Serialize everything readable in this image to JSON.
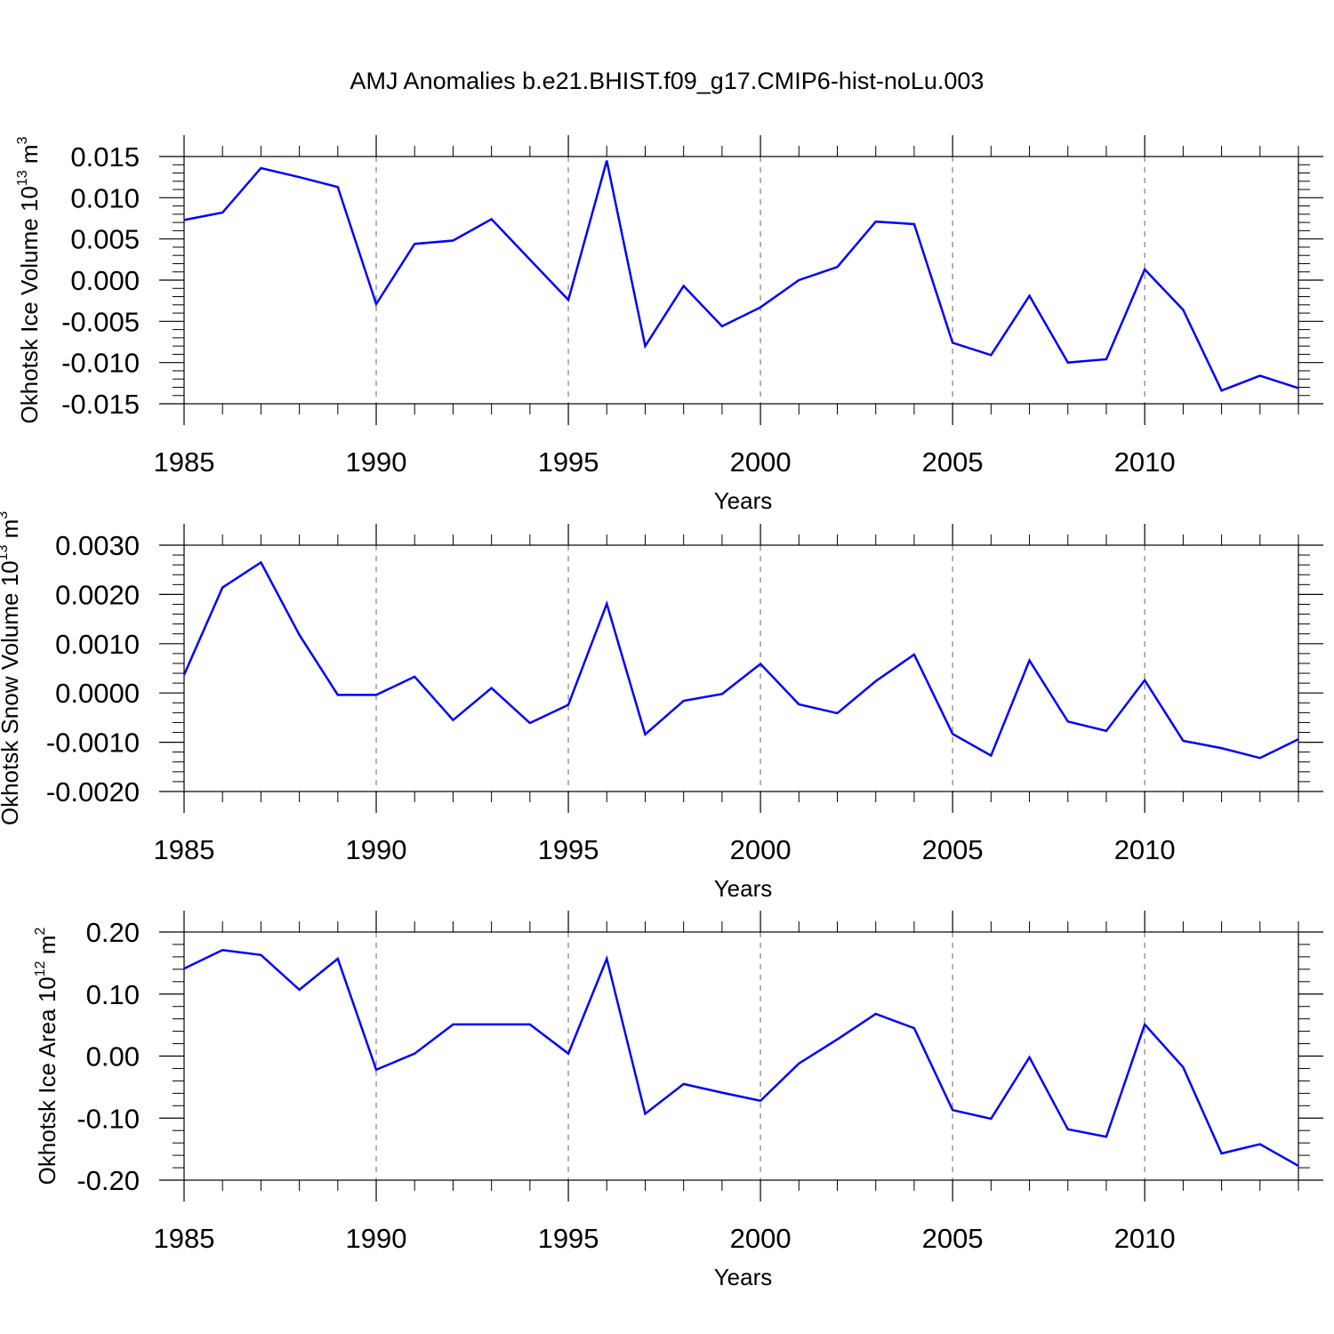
{
  "title": "AMJ Anomalies b.e21.BHIST.f09_g17.CMIP6-hist-noLu.003",
  "colors": {
    "series": "#0000ff",
    "grid": "#999999"
  },
  "chart_data": [
    {
      "type": "line",
      "ylabel": {
        "text": "Okhotsk Ice Volume 10",
        "exp": "13",
        "unit_sep": " m",
        "unit_exp": "3"
      },
      "xlabel": "Years",
      "xlim": [
        1985,
        2014
      ],
      "ylim": [
        -0.015,
        0.015
      ],
      "yticks": [
        -0.015,
        -0.01,
        -0.005,
        0.0,
        0.005,
        0.01,
        0.015
      ],
      "ytick_labels": [
        "-0.015",
        "-0.010",
        "-0.005",
        "0.000",
        "0.005",
        "0.010",
        "0.015"
      ],
      "xticks": [
        1985,
        1990,
        1995,
        2000,
        2005,
        2010
      ],
      "xtick_labels": [
        "1985",
        "1990",
        "1995",
        "2000",
        "2005",
        "2010"
      ],
      "grid_x": [
        1990,
        1995,
        2000,
        2005,
        2010
      ],
      "x": [
        1985,
        1986,
        1987,
        1988,
        1989,
        1990,
        1991,
        1992,
        1993,
        1994,
        1995,
        1996,
        1997,
        1998,
        1999,
        2000,
        2001,
        2002,
        2003,
        2004,
        2005,
        2006,
        2007,
        2008,
        2009,
        2010,
        2011,
        2012,
        2013,
        2014
      ],
      "series": [
        {
          "values": [
            0.0073,
            0.0082,
            0.0136,
            0.0125,
            0.0113,
            -0.0029,
            0.0044,
            0.0048,
            0.0074,
            0.0025,
            -0.0024,
            0.0145,
            -0.008,
            -0.0007,
            -0.0056,
            -0.0033,
            0.0,
            0.0016,
            0.0071,
            0.0068,
            -0.0076,
            -0.0091,
            -0.0019,
            -0.01,
            -0.0096,
            0.0013,
            -0.0036,
            -0.0134,
            -0.0116,
            -0.0131
          ]
        }
      ]
    },
    {
      "type": "line",
      "ylabel": {
        "text": "Okhotsk Snow Volume 10",
        "exp": "13",
        "unit_sep": " m",
        "unit_exp": "3"
      },
      "xlabel": "Years",
      "xlim": [
        1985,
        2014
      ],
      "ylim": [
        -0.002,
        0.003
      ],
      "yticks": [
        -0.002,
        -0.001,
        0.0,
        0.001,
        0.002,
        0.003
      ],
      "ytick_labels": [
        "-0.0020",
        "-0.0010",
        "0.0000",
        "0.0010",
        "0.0020",
        "0.0030"
      ],
      "xticks": [
        1985,
        1990,
        1995,
        2000,
        2005,
        2010
      ],
      "xtick_labels": [
        "1985",
        "1990",
        "1995",
        "2000",
        "2005",
        "2010"
      ],
      "grid_x": [
        1990,
        1995,
        2000,
        2005,
        2010
      ],
      "x": [
        1985,
        1986,
        1987,
        1988,
        1989,
        1990,
        1991,
        1992,
        1993,
        1994,
        1995,
        1996,
        1997,
        1998,
        1999,
        2000,
        2001,
        2002,
        2003,
        2004,
        2005,
        2006,
        2007,
        2008,
        2009,
        2010,
        2011,
        2012,
        2013,
        2014
      ],
      "series": [
        {
          "values": [
            0.00037,
            0.00214,
            0.00265,
            0.00118,
            -4e-05,
            -4e-05,
            0.00033,
            -0.00055,
            0.0001,
            -0.00061,
            -0.00024,
            0.00181,
            -0.00084,
            -0.00016,
            -2e-05,
            0.00059,
            -0.00023,
            -0.00041,
            0.00024,
            0.00078,
            -0.00083,
            -0.00127,
            0.00066,
            -0.00058,
            -0.00077,
            0.00026,
            -0.00097,
            -0.00112,
            -0.00132,
            -0.00094
          ]
        }
      ]
    },
    {
      "type": "line",
      "ylabel": {
        "text": "Okhotsk Ice Area 10",
        "exp": "12",
        "unit_sep": " m",
        "unit_exp": "2"
      },
      "xlabel": "Years",
      "xlim": [
        1985,
        2014
      ],
      "ylim": [
        -0.2,
        0.2
      ],
      "yticks": [
        -0.2,
        -0.1,
        0.0,
        0.1,
        0.2
      ],
      "ytick_labels": [
        "-0.20",
        "-0.10",
        "0.00",
        "0.10",
        "0.20"
      ],
      "xticks": [
        1985,
        1990,
        1995,
        2000,
        2005,
        2010
      ],
      "xtick_labels": [
        "1985",
        "1990",
        "1995",
        "2000",
        "2005",
        "2010"
      ],
      "grid_x": [
        1990,
        1995,
        2000,
        2005,
        2010
      ],
      "x": [
        1985,
        1986,
        1987,
        1988,
        1989,
        1990,
        1991,
        1992,
        1993,
        1994,
        1995,
        1996,
        1997,
        1998,
        1999,
        2000,
        2001,
        2002,
        2003,
        2004,
        2005,
        2006,
        2007,
        2008,
        2009,
        2010,
        2011,
        2012,
        2013,
        2014
      ],
      "series": [
        {
          "values": [
            0.141,
            0.171,
            0.163,
            0.107,
            0.157,
            -0.022,
            0.004,
            0.051,
            0.051,
            0.051,
            0.004,
            0.157,
            -0.093,
            -0.045,
            -0.059,
            -0.072,
            -0.012,
            0.027,
            0.068,
            0.045,
            -0.087,
            -0.101,
            -0.002,
            -0.118,
            -0.13,
            0.051,
            -0.018,
            -0.157,
            -0.142,
            -0.177
          ]
        }
      ]
    }
  ]
}
